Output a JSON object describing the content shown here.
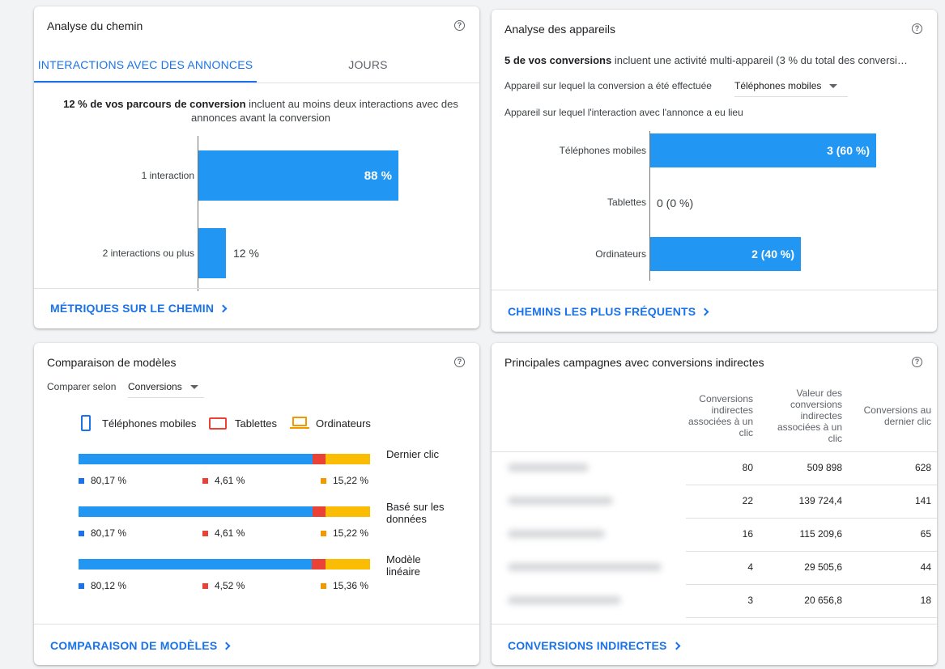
{
  "path_card": {
    "title": "Analyse du chemin",
    "help": "?",
    "tabs": [
      {
        "label": "INTERACTIONS AVEC DES ANNONCES",
        "active": true
      },
      {
        "label": "JOURS",
        "active": false
      }
    ],
    "summary_bold": "12 % de vos parcours de conversion",
    "summary_rest_1": "incluent au moins deux interactions avec des",
    "summary_rest_2": "annonces avant la conversion",
    "bars": [
      {
        "label": "1 interaction",
        "value": 88,
        "display": "88 %"
      },
      {
        "label": "2 interactions ou plus",
        "value": 12,
        "display": "12 %"
      }
    ],
    "footer": "MÉTRIQUES SUR LE CHEMIN"
  },
  "device_card": {
    "title": "Analyse des appareils",
    "help": "?",
    "summary_bold": "5 de vos conversions",
    "summary_rest": "incluent une activité multi-appareil (3 % du total des conversi…",
    "conversion_device_label": "Appareil sur lequel la conversion a été effectuée",
    "conversion_device_value": "Téléphones mobiles",
    "interaction_device_label": "Appareil sur lequel l'interaction avec l'annonce a eu lieu",
    "bars": [
      {
        "label": "Téléphones mobiles",
        "value": 60,
        "display": "3 (60 %)"
      },
      {
        "label": "Tablettes",
        "value": 0,
        "display": "0 (0 %)"
      },
      {
        "label": "Ordinateurs",
        "value": 40,
        "display": "2 (40 %)"
      }
    ],
    "footer": "CHEMINS LES PLUS FRÉQUENTS"
  },
  "model_card": {
    "title": "Comparaison de modèles",
    "help": "?",
    "compare_label": "Comparer selon",
    "compare_value": "Conversions",
    "legend": [
      {
        "label": "Téléphones mobiles",
        "icon": "smartphone-icon",
        "color": "#1a73e8"
      },
      {
        "label": "Tablettes",
        "icon": "tablet-icon",
        "color": "#ea4335"
      },
      {
        "label": "Ordinateurs",
        "icon": "laptop-icon",
        "color": "#f29900"
      }
    ],
    "models": [
      {
        "label_1": "Dernier clic",
        "label_2": "",
        "mobile": 80.17,
        "tablet": 4.61,
        "desktop": 15.22,
        "mobile_text": "80,17 %",
        "tablet_text": "4,61 %",
        "desktop_text": "15,22 %"
      },
      {
        "label_1": "Basé sur les",
        "label_2": "données",
        "mobile": 80.17,
        "tablet": 4.61,
        "desktop": 15.22,
        "mobile_text": "80,17 %",
        "tablet_text": "4,61 %",
        "desktop_text": "15,22 %"
      },
      {
        "label_1": "Modèle",
        "label_2": "linéaire",
        "mobile": 80.12,
        "tablet": 4.52,
        "desktop": 15.36,
        "mobile_text": "80,12 %",
        "tablet_text": "4,52 %",
        "desktop_text": "15,36 %"
      }
    ],
    "footer": "COMPARAISON DE MODÈLES"
  },
  "campaign_card": {
    "title": "Principales campagnes avec conversions indirectes",
    "help": "?",
    "headers": [
      [
        "Conversions",
        "indirectes",
        "associées à un",
        "clic"
      ],
      [
        "Valeur des",
        "conversions",
        "indirectes",
        "associées à un",
        "clic"
      ],
      [
        "Conversions au",
        "dernier clic"
      ]
    ],
    "rows": [
      {
        "assisted": "80",
        "value": "509 898",
        "last": "628"
      },
      {
        "assisted": "22",
        "value": "139 724,4",
        "last": "141"
      },
      {
        "assisted": "16",
        "value": "115 209,6",
        "last": "65"
      },
      {
        "assisted": "4",
        "value": "29 505,6",
        "last": "44"
      },
      {
        "assisted": "3",
        "value": "20 656,8",
        "last": "18"
      }
    ],
    "footer": "CONVERSIONS INDIRECTES"
  }
}
